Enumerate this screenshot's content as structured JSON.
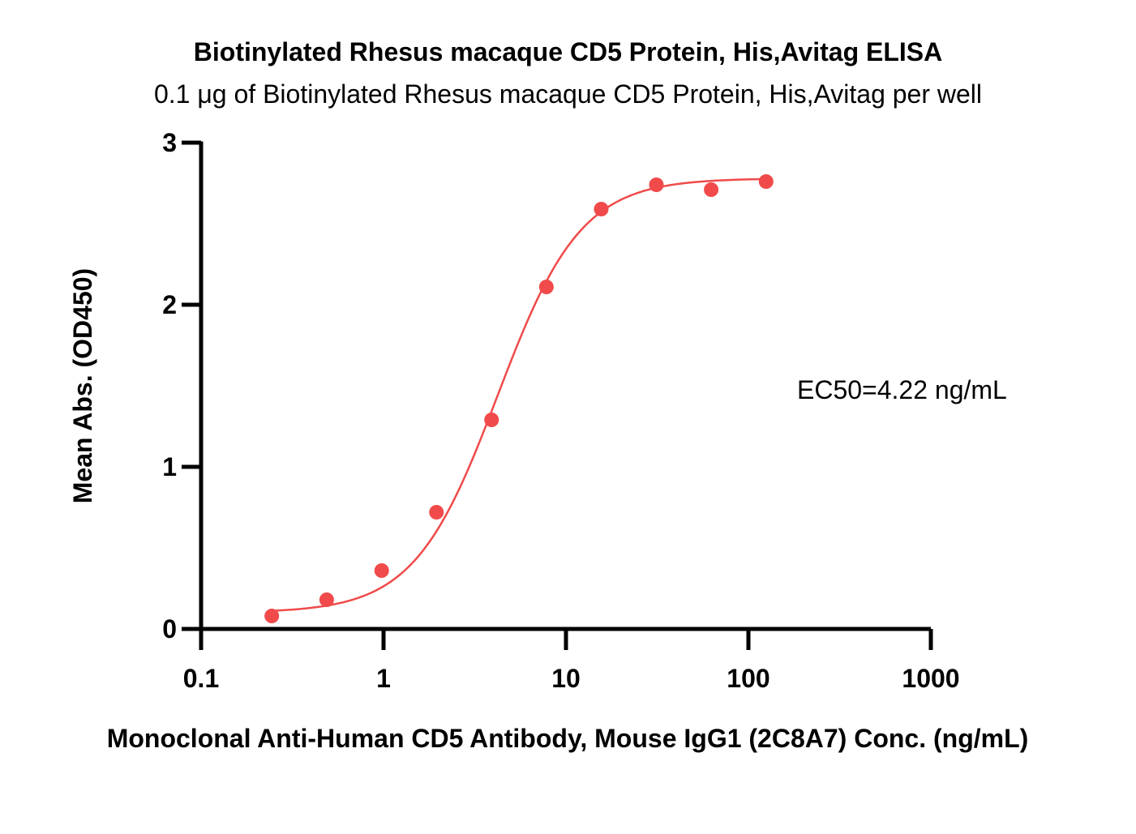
{
  "chart_data": {
    "type": "scatter",
    "title": "Biotinylated Rhesus macaque CD5 Protein, His,Avitag ELISA",
    "subtitle": "0.1 μg of Biotinylated Rhesus macaque CD5 Protein, His,Avitag per well",
    "xlabel": "Monoclonal Anti-Human CD5 Antibody, Mouse IgG1 (2C8A7) Conc. (ng/mL)",
    "ylabel": "Mean Abs. (OD450)",
    "x_scale": "log",
    "xlim": [
      0.1,
      1000
    ],
    "ylim": [
      0,
      3
    ],
    "x_ticks": [
      0.1,
      1,
      10,
      100,
      1000
    ],
    "x_tick_labels": [
      "0.1",
      "1",
      "10",
      "100",
      "1000"
    ],
    "y_ticks": [
      0,
      1,
      2,
      3
    ],
    "y_tick_labels": [
      "0",
      "1",
      "2",
      "3"
    ],
    "grid": false,
    "series": [
      {
        "x": [
          0.244,
          0.488,
          0.977,
          1.95,
          3.91,
          7.81,
          15.6,
          31.3,
          62.5,
          125
        ],
        "y": [
          0.08,
          0.18,
          0.36,
          0.72,
          1.29,
          2.11,
          2.59,
          2.74,
          2.71,
          2.76
        ],
        "color": "#f04a4a"
      }
    ],
    "fit_curve": {
      "model": "4PL",
      "bottom": 0.1,
      "top": 2.78,
      "ec50": 4.22,
      "hill": 1.9,
      "x_range": [
        0.244,
        125
      ],
      "color": "#f04a4a"
    },
    "annotation": "EC50=4.22 ng/mL"
  }
}
